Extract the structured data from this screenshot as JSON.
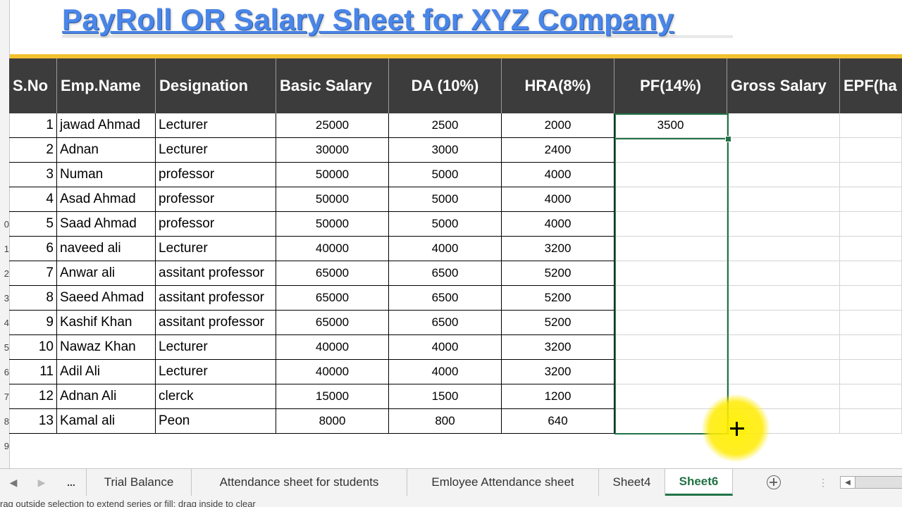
{
  "title": "PayRoll OR Salary Sheet for XYZ Company",
  "columns": [
    "S.No",
    "Emp.Name",
    "Designation",
    "Basic Salary",
    "DA (10%)",
    "HRA(8%)",
    "PF(14%)",
    "Gross Salary",
    "EPF(ha"
  ],
  "rows": [
    {
      "sno": "1",
      "name": "jawad Ahmad",
      "designation": "Lecturer",
      "basic": "25000",
      "da": "2500",
      "hra": "2000",
      "pf": "3500"
    },
    {
      "sno": "2",
      "name": "Adnan",
      "designation": "Lecturer",
      "basic": "30000",
      "da": "3000",
      "hra": "2400",
      "pf": ""
    },
    {
      "sno": "3",
      "name": "Numan",
      "designation": "professor",
      "basic": "50000",
      "da": "5000",
      "hra": "4000",
      "pf": ""
    },
    {
      "sno": "4",
      "name": "Asad Ahmad",
      "designation": "professor",
      "basic": "50000",
      "da": "5000",
      "hra": "4000",
      "pf": ""
    },
    {
      "sno": "5",
      "name": "Saad Ahmad",
      "designation": "professor",
      "basic": "50000",
      "da": "5000",
      "hra": "4000",
      "pf": ""
    },
    {
      "sno": "6",
      "name": "naveed ali",
      "designation": "Lecturer",
      "basic": "40000",
      "da": "4000",
      "hra": "3200",
      "pf": ""
    },
    {
      "sno": "7",
      "name": "Anwar ali",
      "designation": "assitant professor",
      "basic": "65000",
      "da": "6500",
      "hra": "5200",
      "pf": ""
    },
    {
      "sno": "8",
      "name": "Saeed Ahmad",
      "designation": "assitant professor",
      "basic": "65000",
      "da": "6500",
      "hra": "5200",
      "pf": ""
    },
    {
      "sno": "9",
      "name": "Kashif Khan",
      "designation": "assitant professor",
      "basic": "65000",
      "da": "6500",
      "hra": "5200",
      "pf": ""
    },
    {
      "sno": "10",
      "name": "Nawaz Khan",
      "designation": "Lecturer",
      "basic": "40000",
      "da": "4000",
      "hra": "3200",
      "pf": ""
    },
    {
      "sno": "11",
      "name": "Adil Ali",
      "designation": "Lecturer",
      "basic": "40000",
      "da": "4000",
      "hra": "3200",
      "pf": ""
    },
    {
      "sno": "12",
      "name": "Adnan Ali",
      "designation": "clerck",
      "basic": "15000",
      "da": "1500",
      "hra": "1200",
      "pf": ""
    },
    {
      "sno": "13",
      "name": "Kamal ali",
      "designation": "Peon",
      "basic": "8000",
      "da": "800",
      "hra": "640",
      "pf": ""
    }
  ],
  "row_numbers": [
    "0",
    "1",
    "2",
    "3",
    "4",
    "5",
    "6",
    "7",
    "8",
    "9"
  ],
  "tabs": {
    "more": "...",
    "items": [
      "Trial Balance",
      "Attendance sheet for students",
      "Emloyee Attendance sheet",
      "Sheet4",
      "Sheet6"
    ],
    "active": "Sheet6"
  },
  "status_text": "rag outside selection to extend series or fill; drag inside to clear",
  "colors": {
    "header_bg": "#3c3c3c",
    "accent": "#217346",
    "title": "#4a86e8",
    "band": "#f2c12e"
  }
}
